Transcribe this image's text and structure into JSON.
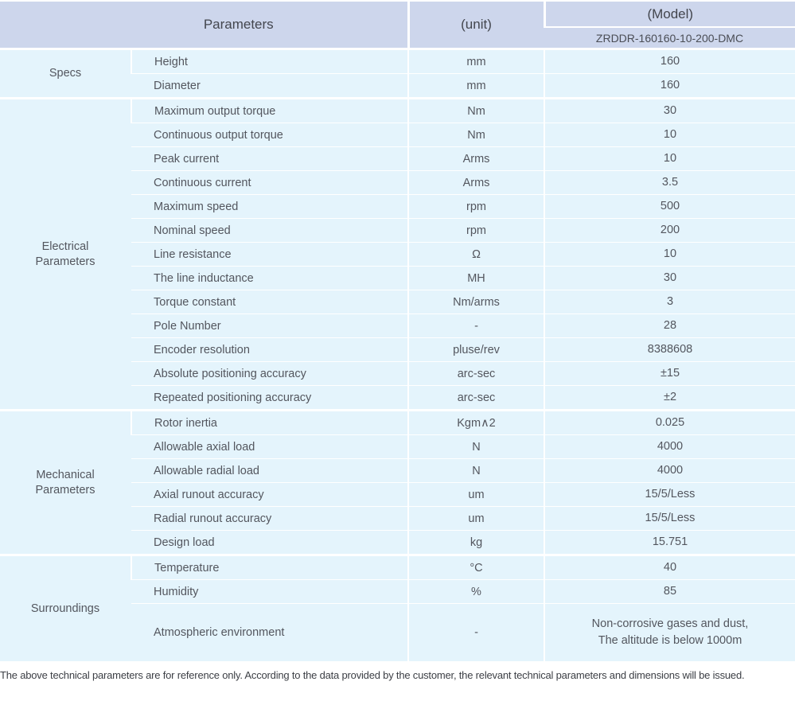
{
  "header": {
    "parameters_label": "Parameters",
    "unit_label": "(unit)",
    "model_label": "(Model)",
    "model_code": "ZRDDR-160160-10-200-DMC"
  },
  "sections": [
    {
      "category": "Specs",
      "rows": [
        {
          "name": "Height",
          "unit": "mm",
          "value": "160"
        },
        {
          "name": "Diameter",
          "unit": "mm",
          "value": "160"
        }
      ]
    },
    {
      "category": "Electrical\nParameters",
      "rows": [
        {
          "name": "Maximum output torque",
          "unit": "Nm",
          "value": "30"
        },
        {
          "name": "Continuous output torque",
          "unit": "Nm",
          "value": "10"
        },
        {
          "name": "Peak current",
          "unit": "Arms",
          "value": "10"
        },
        {
          "name": "Continuous current",
          "unit": "Arms",
          "value": "3.5"
        },
        {
          "name": "Maximum speed",
          "unit": "rpm",
          "value": "500"
        },
        {
          "name": "Nominal speed",
          "unit": "rpm",
          "value": "200"
        },
        {
          "name": "Line resistance",
          "unit": "Ω",
          "value": "10"
        },
        {
          "name": "The line inductance",
          "unit": "MH",
          "value": "30"
        },
        {
          "name": "Torque constant",
          "unit": "Nm/arms",
          "value": "3"
        },
        {
          "name": "Pole Number",
          "unit": "-",
          "value": "28"
        },
        {
          "name": "Encoder resolution",
          "unit": "pluse/rev",
          "value": "8388608"
        },
        {
          "name": "Absolute positioning accuracy",
          "unit": "arc-sec",
          "value": "±15"
        },
        {
          "name": "Repeated positioning accuracy",
          "unit": "arc-sec",
          "value": "±2"
        }
      ]
    },
    {
      "category": "Mechanical\nParameters",
      "rows": [
        {
          "name": "Rotor inertia",
          "unit": "Kgm∧2",
          "value": "0.025"
        },
        {
          "name": "Allowable axial load",
          "unit": "N",
          "value": "4000"
        },
        {
          "name": "Allowable radial load",
          "unit": "N",
          "value": "4000"
        },
        {
          "name": "Axial runout accuracy",
          "unit": "um",
          "value": "15/5/Less"
        },
        {
          "name": "Radial runout accuracy",
          "unit": "um",
          "value": "15/5/Less"
        },
        {
          "name": "Design load",
          "unit": "kg",
          "value": "15.751"
        }
      ]
    },
    {
      "category": "Surroundings",
      "rows": [
        {
          "name": "Temperature",
          "unit": "°C",
          "value": "40"
        },
        {
          "name": "Humidity",
          "unit": "%",
          "value": "85"
        },
        {
          "name": "Atmospheric environment",
          "unit": "-",
          "value": "Non-corrosive gases and dust,\nThe altitude is below 1000m",
          "tall": true
        }
      ]
    }
  ],
  "footnote": "The above technical parameters are for reference only. According to the data provided by the customer, the relevant technical parameters and dimensions will be issued.",
  "colors": {
    "header_bg": "#cdd6ec",
    "cell_bg": "#e4f4fc",
    "border": "#ffffff",
    "body_text": "#53565e",
    "header_text": "#43464e"
  }
}
